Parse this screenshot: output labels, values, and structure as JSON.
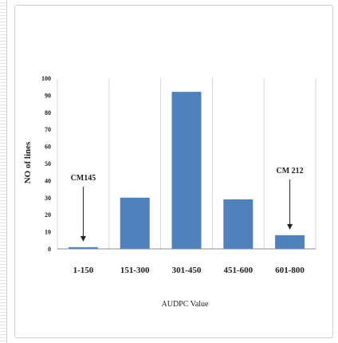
{
  "chart_data": {
    "type": "bar",
    "categories": [
      "1-150",
      "151-300",
      "301-450",
      "451-600",
      "601-800"
    ],
    "values": [
      1,
      30,
      92,
      29,
      8
    ],
    "xlabel": "AUDPC Value",
    "ylabel": "NO of lines",
    "ylim": [
      0,
      100
    ],
    "yticks": [
      0,
      10,
      20,
      30,
      40,
      50,
      60,
      70,
      80,
      90,
      100
    ],
    "grid": "vertical",
    "bar_color": "#4f81bd",
    "annotations": [
      {
        "text": "CM145",
        "category": "1-150"
      },
      {
        "text": "CM 212",
        "category": "601-800"
      }
    ]
  }
}
